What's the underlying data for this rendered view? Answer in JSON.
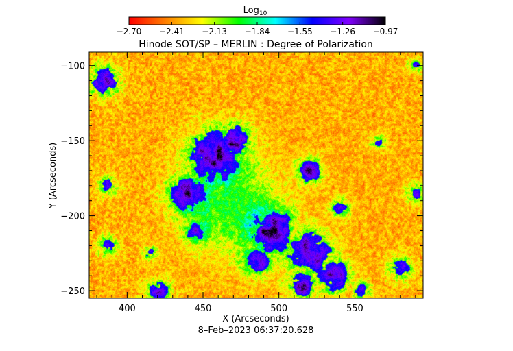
{
  "chart_data": {
    "type": "heatmap",
    "title": "Hinode SOT/SP – MERLIN : Degree of Polarization",
    "xlabel": "X (Arcseconds)",
    "ylabel": "Y (Arcseconds)",
    "timestamp": "8–Feb–2023 06:37:20.628",
    "xlim": [
      375,
      595
    ],
    "ylim": [
      -255,
      -91
    ],
    "x_ticks": [
      400,
      450,
      500,
      550
    ],
    "y_ticks": [
      -100,
      -150,
      -200,
      -250
    ],
    "colorbar": {
      "label_base": "Log",
      "label_sub": "10",
      "range": [
        -2.7,
        -0.97
      ],
      "tick_labels": [
        "−2.70",
        "−2.41",
        "−2.13",
        "−1.84",
        "−1.55",
        "−1.26",
        "−0.97"
      ],
      "colormap": [
        "#ff0000",
        "#ff7f00",
        "#ffff00",
        "#00ff00",
        "#00ffff",
        "#0000ff",
        "#8000ff",
        "#000000"
      ]
    },
    "field_colors": {
      "quiet_sun": "#ff5000",
      "intermediate": "#ffd800",
      "weak_network": "#20ff40",
      "network": "#2040ff",
      "strong_network": "#1000a0"
    },
    "regions_description_units": "arcseconds",
    "network_centers": [
      {
        "x": 458,
        "y": -160,
        "r": 22,
        "level": 0.85
      },
      {
        "x": 440,
        "y": -185,
        "r": 16,
        "level": 0.8
      },
      {
        "x": 470,
        "y": -150,
        "r": 14,
        "level": 0.8
      },
      {
        "x": 495,
        "y": -210,
        "r": 18,
        "level": 0.9
      },
      {
        "x": 520,
        "y": -225,
        "r": 18,
        "level": 0.85
      },
      {
        "x": 535,
        "y": -240,
        "r": 14,
        "level": 0.8
      },
      {
        "x": 515,
        "y": -245,
        "r": 12,
        "level": 0.8
      },
      {
        "x": 485,
        "y": -230,
        "r": 12,
        "level": 0.7
      },
      {
        "x": 520,
        "y": -170,
        "r": 10,
        "level": 0.75
      },
      {
        "x": 540,
        "y": -195,
        "r": 8,
        "level": 0.6
      },
      {
        "x": 385,
        "y": -110,
        "r": 12,
        "level": 0.75
      },
      {
        "x": 387,
        "y": -180,
        "r": 8,
        "level": 0.6
      },
      {
        "x": 387,
        "y": -220,
        "r": 8,
        "level": 0.6
      },
      {
        "x": 420,
        "y": -250,
        "r": 10,
        "level": 0.65
      },
      {
        "x": 415,
        "y": -225,
        "r": 6,
        "level": 0.55
      },
      {
        "x": 590,
        "y": -185,
        "r": 8,
        "level": 0.6
      },
      {
        "x": 580,
        "y": -235,
        "r": 10,
        "level": 0.6
      },
      {
        "x": 590,
        "y": -100,
        "r": 6,
        "level": 0.5
      },
      {
        "x": 565,
        "y": -150,
        "r": 6,
        "level": 0.5
      },
      {
        "x": 555,
        "y": -250,
        "r": 8,
        "level": 0.6
      },
      {
        "x": 445,
        "y": -210,
        "r": 10,
        "level": 0.6
      }
    ],
    "plage_center": {
      "x": 470,
      "y": -195,
      "r": 30,
      "level": 0.55
    }
  }
}
